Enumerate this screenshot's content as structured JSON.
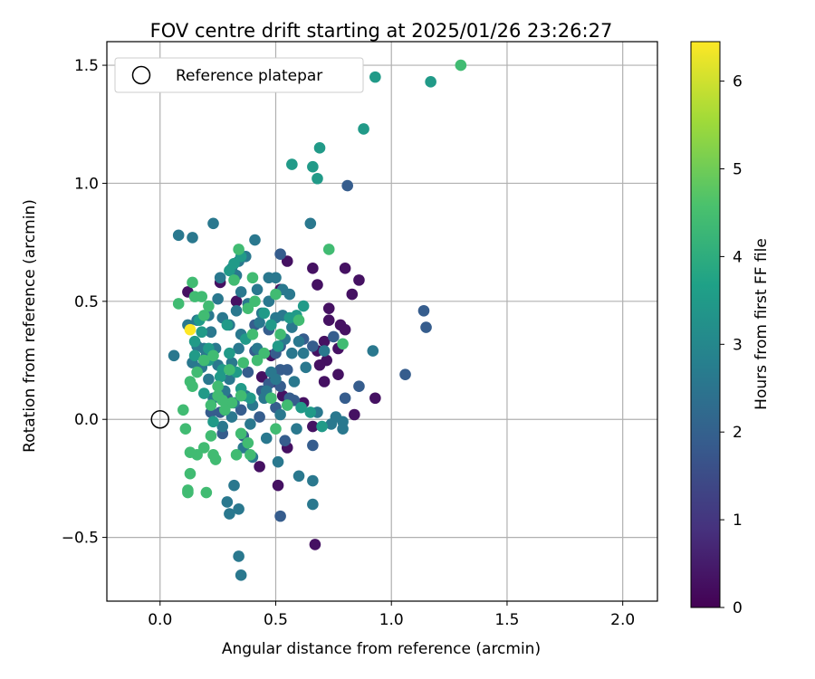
{
  "chart_data": {
    "type": "scatter",
    "title": "FOV centre drift starting at 2025/01/26 23:26:27",
    "xlabel": "Angular distance from reference (arcmin)",
    "ylabel": "Rotation from reference (arcmin)",
    "xlim": [
      -0.23,
      2.15
    ],
    "ylim": [
      -0.77,
      1.6
    ],
    "x_ticks": [
      0.0,
      0.5,
      1.0,
      1.5,
      2.0
    ],
    "x_tick_labels": [
      "0.0",
      "0.5",
      "1.0",
      "1.5",
      "2.0"
    ],
    "y_ticks": [
      -0.5,
      0.0,
      0.5,
      1.0,
      1.5
    ],
    "y_tick_labels": [
      "−0.5",
      "0.0",
      "0.5",
      "1.0",
      "1.5"
    ],
    "grid": true,
    "legend": {
      "position": "top-left",
      "entries": [
        "Reference platepar"
      ]
    },
    "reference_point": {
      "x": 0.0,
      "y": 0.0,
      "label": "Reference platepar"
    },
    "colorbar": {
      "label": "Hours from first FF file",
      "colormap": "viridis",
      "range": [
        0,
        6.45
      ],
      "ticks": [
        0,
        1,
        2,
        3,
        4,
        5,
        6
      ],
      "tick_labels": [
        "0",
        "1",
        "2",
        "3",
        "4",
        "5",
        "6"
      ]
    },
    "points": [
      [
        0.52,
        0.55,
        0.3
      ],
      [
        0.55,
        0.67,
        0.3
      ],
      [
        0.66,
        0.64,
        0.3
      ],
      [
        0.68,
        0.57,
        0.3
      ],
      [
        0.8,
        0.64,
        0.3
      ],
      [
        0.86,
        0.59,
        0.3
      ],
      [
        0.83,
        0.53,
        0.3
      ],
      [
        0.73,
        0.47,
        0.3
      ],
      [
        0.73,
        0.42,
        0.3
      ],
      [
        0.78,
        0.4,
        0.3
      ],
      [
        0.8,
        0.38,
        0.3
      ],
      [
        0.77,
        0.3,
        0.3
      ],
      [
        0.71,
        0.33,
        0.3
      ],
      [
        0.68,
        0.29,
        0.3
      ],
      [
        0.72,
        0.25,
        0.3
      ],
      [
        0.69,
        0.23,
        0.3
      ],
      [
        0.77,
        0.19,
        0.3
      ],
      [
        0.71,
        0.16,
        0.3
      ],
      [
        0.93,
        0.09,
        0.3
      ],
      [
        0.84,
        0.02,
        0.3
      ],
      [
        0.66,
        -0.03,
        0.3
      ],
      [
        0.55,
        -0.12,
        0.3
      ],
      [
        0.43,
        -0.2,
        0.3
      ],
      [
        0.51,
        -0.28,
        0.3
      ],
      [
        0.67,
        -0.53,
        0.3
      ],
      [
        0.48,
        0.27,
        0.3
      ],
      [
        0.53,
        0.1,
        0.3
      ],
      [
        0.33,
        0.5,
        0.3
      ],
      [
        0.26,
        0.58,
        0.3
      ],
      [
        0.12,
        0.54,
        0.3
      ],
      [
        0.49,
        0.16,
        0.3
      ],
      [
        0.44,
        0.18,
        0.3
      ],
      [
        0.62,
        0.07,
        0.3
      ],
      [
        0.81,
        0.99,
        1.9
      ],
      [
        1.14,
        0.46,
        1.9
      ],
      [
        1.15,
        0.39,
        1.9
      ],
      [
        1.06,
        0.19,
        1.9
      ],
      [
        0.86,
        0.14,
        1.9
      ],
      [
        0.8,
        0.09,
        1.9
      ],
      [
        0.52,
        0.7,
        1.9
      ],
      [
        0.52,
        0.31,
        1.9
      ],
      [
        0.52,
        0.21,
        1.9
      ],
      [
        0.52,
        0.14,
        1.9
      ],
      [
        0.58,
        0.08,
        1.9
      ],
      [
        0.5,
        0.05,
        1.9
      ],
      [
        0.66,
        0.31,
        1.9
      ],
      [
        0.75,
        0.35,
        1.9
      ],
      [
        0.62,
        0.34,
        1.9
      ],
      [
        0.66,
        -0.11,
        1.9
      ],
      [
        0.54,
        -0.09,
        1.9
      ],
      [
        0.52,
        -0.41,
        1.9
      ],
      [
        0.41,
        0.29,
        1.9
      ],
      [
        0.38,
        0.2,
        1.9
      ],
      [
        0.44,
        0.12,
        1.9
      ],
      [
        0.47,
        0.15,
        1.9
      ],
      [
        0.43,
        0.01,
        1.9
      ],
      [
        0.29,
        0.09,
        1.9
      ],
      [
        0.26,
        0.03,
        1.9
      ],
      [
        0.22,
        0.03,
        1.9
      ],
      [
        0.27,
        -0.06,
        1.9
      ],
      [
        0.35,
        0.04,
        1.9
      ],
      [
        0.36,
        -0.07,
        1.9
      ],
      [
        0.56,
        0.09,
        1.9
      ],
      [
        0.5,
        0.28,
        1.9
      ],
      [
        0.55,
        0.21,
        1.9
      ],
      [
        0.47,
        0.38,
        1.9
      ],
      [
        0.41,
        0.4,
        1.9
      ],
      [
        0.12,
        0.4,
        2.6
      ],
      [
        0.14,
        0.24,
        2.6
      ],
      [
        0.18,
        0.22,
        2.6
      ],
      [
        0.2,
        0.27,
        2.6
      ],
      [
        0.21,
        0.17,
        2.6
      ],
      [
        0.24,
        0.3,
        2.6
      ],
      [
        0.23,
        0.09,
        2.6
      ],
      [
        0.3,
        0.17,
        2.6
      ],
      [
        0.31,
        0.24,
        2.6
      ],
      [
        0.34,
        0.3,
        2.6
      ],
      [
        0.35,
        0.36,
        2.6
      ],
      [
        0.3,
        0.4,
        2.6
      ],
      [
        0.27,
        0.43,
        2.6
      ],
      [
        0.33,
        0.46,
        2.6
      ],
      [
        0.38,
        0.49,
        2.6
      ],
      [
        0.42,
        0.55,
        2.6
      ],
      [
        0.47,
        0.5,
        2.6
      ],
      [
        0.5,
        0.43,
        2.6
      ],
      [
        0.53,
        0.44,
        2.6
      ],
      [
        0.57,
        0.39,
        2.6
      ],
      [
        0.6,
        0.33,
        2.6
      ],
      [
        0.62,
        0.28,
        2.6
      ],
      [
        0.63,
        0.22,
        2.6
      ],
      [
        0.58,
        0.16,
        2.6
      ],
      [
        0.52,
        0.02,
        2.6
      ],
      [
        0.4,
        0.06,
        2.6
      ],
      [
        0.45,
        0.09,
        2.6
      ],
      [
        0.37,
        0.1,
        2.6
      ],
      [
        0.32,
        0.07,
        2.6
      ],
      [
        0.31,
        0.01,
        2.6
      ],
      [
        0.27,
        -0.03,
        2.6
      ],
      [
        0.28,
        0.12,
        2.6
      ],
      [
        0.39,
        -0.02,
        2.6
      ],
      [
        0.46,
        -0.08,
        2.6
      ],
      [
        0.36,
        -0.12,
        2.6
      ],
      [
        0.4,
        -0.16,
        2.6
      ],
      [
        0.32,
        -0.28,
        2.6
      ],
      [
        0.29,
        -0.35,
        2.6
      ],
      [
        0.3,
        -0.4,
        2.6
      ],
      [
        0.34,
        -0.38,
        2.6
      ],
      [
        0.34,
        -0.58,
        2.6
      ],
      [
        0.35,
        -0.66,
        2.6
      ],
      [
        0.51,
        -0.18,
        2.6
      ],
      [
        0.6,
        -0.24,
        2.6
      ],
      [
        0.66,
        -0.26,
        2.6
      ],
      [
        0.66,
        -0.36,
        2.6
      ],
      [
        0.59,
        -0.04,
        2.6
      ],
      [
        0.68,
        0.03,
        2.6
      ],
      [
        0.74,
        -0.02,
        2.6
      ],
      [
        0.79,
        -0.01,
        2.6
      ],
      [
        0.79,
        -0.04,
        2.6
      ],
      [
        0.76,
        0.01,
        2.6
      ],
      [
        0.5,
        0.6,
        2.6
      ],
      [
        0.53,
        0.55,
        2.6
      ],
      [
        0.56,
        0.53,
        2.6
      ],
      [
        0.47,
        0.6,
        2.6
      ],
      [
        0.44,
        0.45,
        2.6
      ],
      [
        0.43,
        0.41,
        2.6
      ],
      [
        0.25,
        0.51,
        2.6
      ],
      [
        0.35,
        0.54,
        2.6
      ],
      [
        0.41,
        0.76,
        2.6
      ],
      [
        0.37,
        0.69,
        2.6
      ],
      [
        0.34,
        0.67,
        2.6
      ],
      [
        0.65,
        0.83,
        2.6
      ],
      [
        0.23,
        0.83,
        2.6
      ],
      [
        0.14,
        0.77,
        2.6
      ],
      [
        0.08,
        0.78,
        2.6
      ],
      [
        0.16,
        0.42,
        2.6
      ],
      [
        0.21,
        0.44,
        2.6
      ],
      [
        0.22,
        0.37,
        2.6
      ],
      [
        0.16,
        0.31,
        2.6
      ],
      [
        0.19,
        0.3,
        2.6
      ],
      [
        0.26,
        0.6,
        2.6
      ],
      [
        0.92,
        0.29,
        2.6
      ],
      [
        0.06,
        0.27,
        2.6
      ],
      [
        0.25,
        0.23,
        2.6
      ],
      [
        0.33,
        0.61,
        2.6
      ],
      [
        0.31,
        0.64,
        2.6
      ],
      [
        0.54,
        0.34,
        2.6
      ],
      [
        0.57,
        0.28,
        2.6
      ],
      [
        0.42,
        0.3,
        2.6
      ],
      [
        0.48,
        0.2,
        2.6
      ],
      [
        0.5,
        0.17,
        2.6
      ],
      [
        0.46,
        0.12,
        2.6
      ],
      [
        0.71,
        0.29,
        2.6
      ],
      [
        0.57,
        1.08,
        3.5
      ],
      [
        0.66,
        1.07,
        3.5
      ],
      [
        0.68,
        1.02,
        3.5
      ],
      [
        0.69,
        1.15,
        3.5
      ],
      [
        0.88,
        1.23,
        3.5
      ],
      [
        0.93,
        1.45,
        3.5
      ],
      [
        1.17,
        1.43,
        3.5
      ],
      [
        0.56,
        0.43,
        3.5
      ],
      [
        0.62,
        0.48,
        3.5
      ],
      [
        0.59,
        0.44,
        3.5
      ],
      [
        0.48,
        0.4,
        3.5
      ],
      [
        0.37,
        0.34,
        3.5
      ],
      [
        0.3,
        0.28,
        3.5
      ],
      [
        0.27,
        0.21,
        3.5
      ],
      [
        0.21,
        0.25,
        3.5
      ],
      [
        0.18,
        0.37,
        3.5
      ],
      [
        0.15,
        0.27,
        3.5
      ],
      [
        0.17,
        0.42,
        3.5
      ],
      [
        0.19,
        0.11,
        3.5
      ],
      [
        0.23,
        -0.01,
        3.5
      ],
      [
        0.33,
        0.2,
        3.5
      ],
      [
        0.35,
        0.13,
        3.5
      ],
      [
        0.26,
        0.18,
        3.5
      ],
      [
        0.51,
        0.31,
        3.5
      ],
      [
        0.45,
        0.45,
        3.5
      ],
      [
        0.61,
        0.05,
        3.5
      ],
      [
        0.65,
        0.03,
        3.5
      ],
      [
        0.7,
        -0.03,
        3.5
      ],
      [
        0.15,
        0.33,
        3.5
      ],
      [
        0.29,
        0.4,
        3.5
      ],
      [
        0.3,
        0.63,
        3.5
      ],
      [
        0.32,
        0.66,
        3.5
      ],
      [
        0.35,
        0.69,
        3.5
      ],
      [
        0.21,
        0.3,
        3.5
      ],
      [
        0.39,
        0.09,
        3.5
      ],
      [
        1.3,
        1.5,
        4.4
      ],
      [
        0.73,
        0.72,
        4.4
      ],
      [
        0.4,
        0.6,
        4.4
      ],
      [
        0.32,
        0.59,
        4.4
      ],
      [
        0.38,
        0.47,
        4.4
      ],
      [
        0.4,
        0.36,
        4.4
      ],
      [
        0.45,
        0.28,
        4.4
      ],
      [
        0.42,
        0.25,
        4.4
      ],
      [
        0.36,
        0.24,
        4.4
      ],
      [
        0.3,
        0.21,
        4.4
      ],
      [
        0.23,
        0.27,
        4.4
      ],
      [
        0.19,
        0.25,
        4.4
      ],
      [
        0.16,
        0.2,
        4.4
      ],
      [
        0.13,
        0.16,
        4.4
      ],
      [
        0.14,
        0.14,
        4.4
      ],
      [
        0.1,
        0.04,
        4.4
      ],
      [
        0.11,
        -0.04,
        4.4
      ],
      [
        0.22,
        0.06,
        4.4
      ],
      [
        0.25,
        0.1,
        4.4
      ],
      [
        0.31,
        0.07,
        4.4
      ],
      [
        0.35,
        -0.06,
        4.4
      ],
      [
        0.38,
        -0.1,
        4.4
      ],
      [
        0.39,
        -0.15,
        4.4
      ],
      [
        0.33,
        -0.15,
        4.4
      ],
      [
        0.24,
        -0.17,
        4.4
      ],
      [
        0.22,
        -0.07,
        4.4
      ],
      [
        0.19,
        -0.12,
        4.4
      ],
      [
        0.16,
        -0.15,
        4.4
      ],
      [
        0.13,
        -0.14,
        4.4
      ],
      [
        0.13,
        -0.23,
        4.4
      ],
      [
        0.12,
        -0.3,
        4.4
      ],
      [
        0.12,
        -0.31,
        4.4
      ],
      [
        0.2,
        -0.31,
        4.4
      ],
      [
        0.5,
        -0.04,
        4.4
      ],
      [
        0.48,
        0.09,
        4.4
      ],
      [
        0.55,
        0.06,
        4.4
      ],
      [
        0.6,
        0.42,
        4.4
      ],
      [
        0.52,
        0.36,
        4.4
      ],
      [
        0.5,
        0.53,
        4.4
      ],
      [
        0.41,
        0.5,
        4.4
      ],
      [
        0.21,
        0.48,
        4.4
      ],
      [
        0.15,
        0.52,
        4.4
      ],
      [
        0.14,
        0.58,
        4.4
      ],
      [
        0.18,
        0.52,
        4.4
      ],
      [
        0.19,
        0.44,
        4.4
      ],
      [
        0.08,
        0.49,
        4.4
      ],
      [
        0.34,
        0.72,
        4.4
      ],
      [
        0.79,
        0.32,
        4.4
      ],
      [
        0.35,
        0.1,
        4.4
      ],
      [
        0.27,
        0.08,
        4.4
      ],
      [
        0.25,
        0.14,
        4.4
      ],
      [
        0.28,
        0.04,
        4.4
      ],
      [
        0.23,
        -0.15,
        4.4
      ],
      [
        0.13,
        0.38,
        6.45
      ]
    ]
  }
}
